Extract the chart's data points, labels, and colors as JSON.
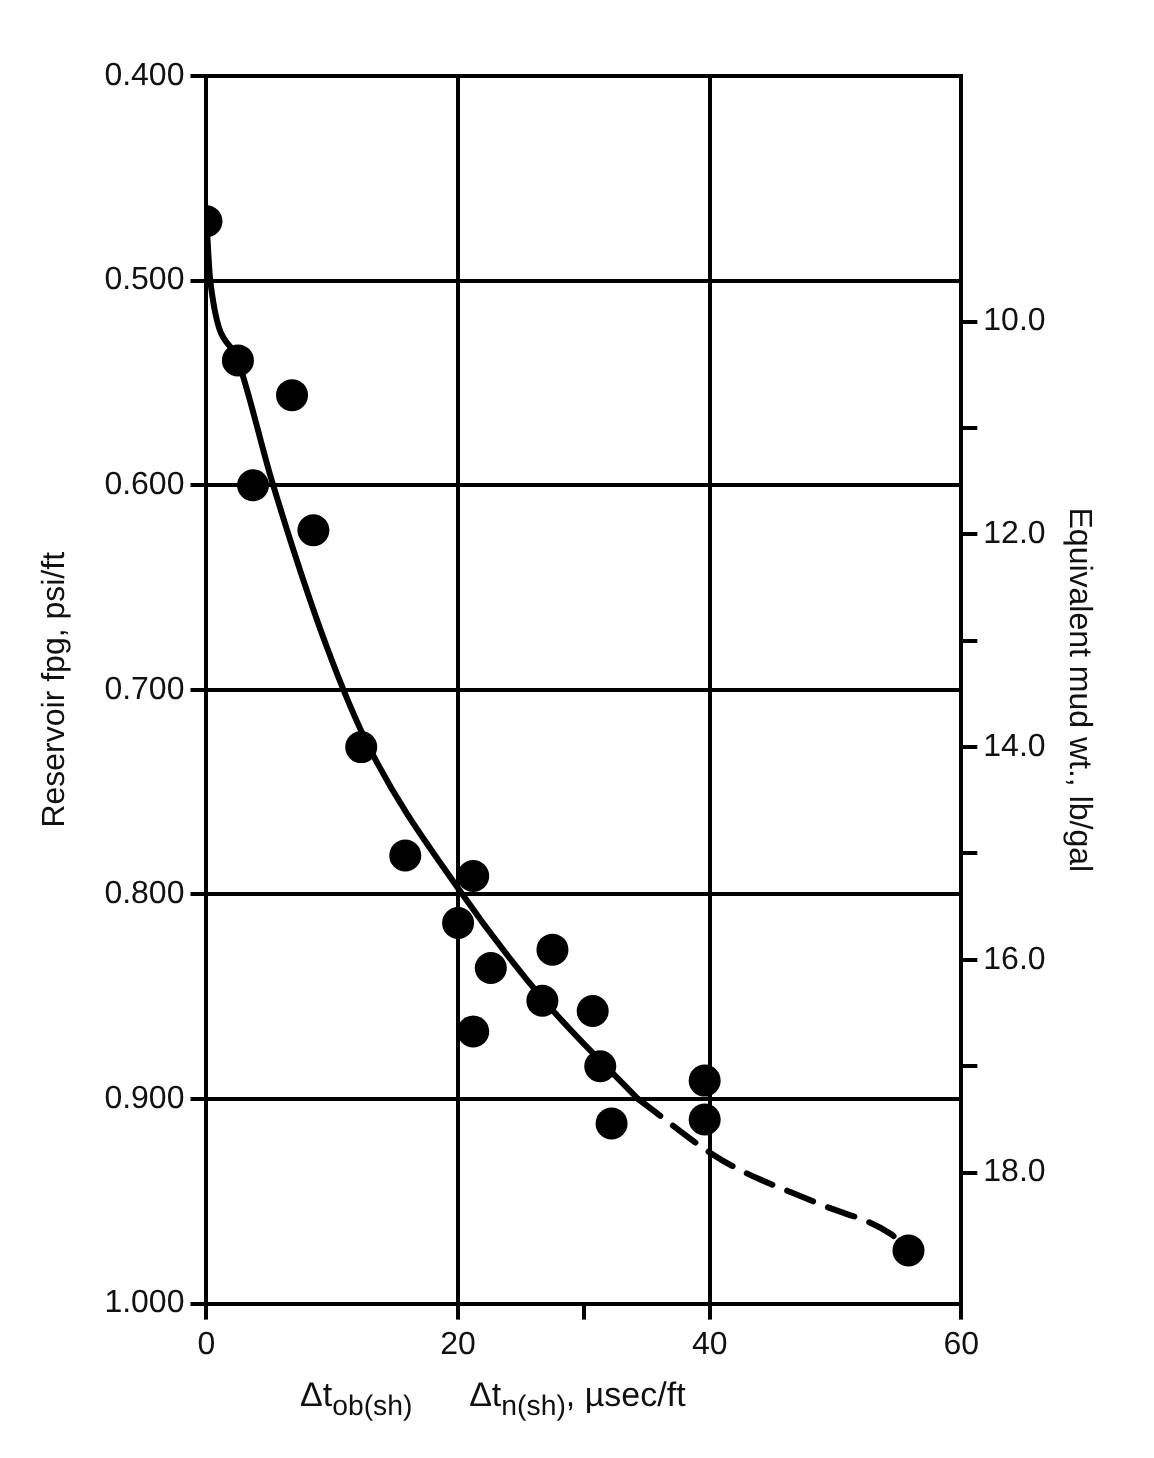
{
  "chart_data": {
    "type": "scatter",
    "xlabel": "Δt$_{ob(sh)}$      Δt$_{n(sh)}$, µsec/ft",
    "ylabel": "Reservoir fpg, psi/ft",
    "y2label": "Equivalent mud wt., lb/gal",
    "xlim": [
      0,
      60
    ],
    "xticks": [
      0,
      20,
      {
        "value": 30,
        "label": null
      },
      40,
      60
    ],
    "ylim": [
      1.0,
      0.4
    ],
    "yticks": [
      {
        "value": 0.4,
        "label": "0.400"
      },
      {
        "value": 0.5,
        "label": "0.500"
      },
      {
        "value": 0.6,
        "label": "0.600"
      },
      {
        "value": 0.7,
        "label": "0.700"
      },
      {
        "value": 0.8,
        "label": "0.800"
      },
      {
        "value": 0.9,
        "label": "0.900"
      },
      {
        "value": 1.0,
        "label": "1.000"
      }
    ],
    "y2lim": [
      19.231,
      7.692
    ],
    "y2ticks": [
      {
        "value": 10,
        "label": "10.0"
      },
      {
        "value": 11,
        "label": null
      },
      {
        "value": 12,
        "label": "12.0"
      },
      {
        "value": 13,
        "label": null
      },
      {
        "value": 14,
        "label": "14.0"
      },
      {
        "value": 15,
        "label": null
      },
      {
        "value": 16,
        "label": "16.0"
      },
      {
        "value": 17,
        "label": null
      },
      {
        "value": 18,
        "label": "18.0"
      }
    ],
    "grid": true,
    "legend": false,
    "series": [
      {
        "type": "scatter",
        "color": "#000000",
        "marker": "circle",
        "x": [
          0,
          2.5,
          6.8,
          3.7,
          8.5,
          12.3,
          15.8,
          21.2,
          20.0,
          22.6,
          27.5,
          26.7,
          21.2,
          30.7,
          31.3,
          32.2,
          39.6,
          39.6,
          55.8
        ],
        "values": [
          0.471,
          0.539,
          0.556,
          0.6,
          0.622,
          0.728,
          0.781,
          0.791,
          0.814,
          0.836,
          0.827,
          0.852,
          0.867,
          0.857,
          0.884,
          0.912,
          0.891,
          0.91,
          0.974
        ]
      },
      {
        "type": "line",
        "color": "#000000",
        "line_style": "solid",
        "marker": "none",
        "x": [
          0,
          0.3,
          2.5,
          5.3,
          9.5,
          13,
          20,
          27,
          34.3
        ],
        "values": [
          0.471,
          0.5,
          0.539,
          0.6,
          0.678,
          0.729,
          0.797,
          0.853,
          0.9
        ]
      },
      {
        "type": "line",
        "color": "#000000",
        "line_style": "dashed",
        "marker": "none",
        "x": [
          34.3,
          41,
          48.6,
          54.4,
          55.8
        ],
        "values": [
          0.9,
          0.93,
          0.951,
          0.966,
          0.974
        ]
      }
    ]
  }
}
